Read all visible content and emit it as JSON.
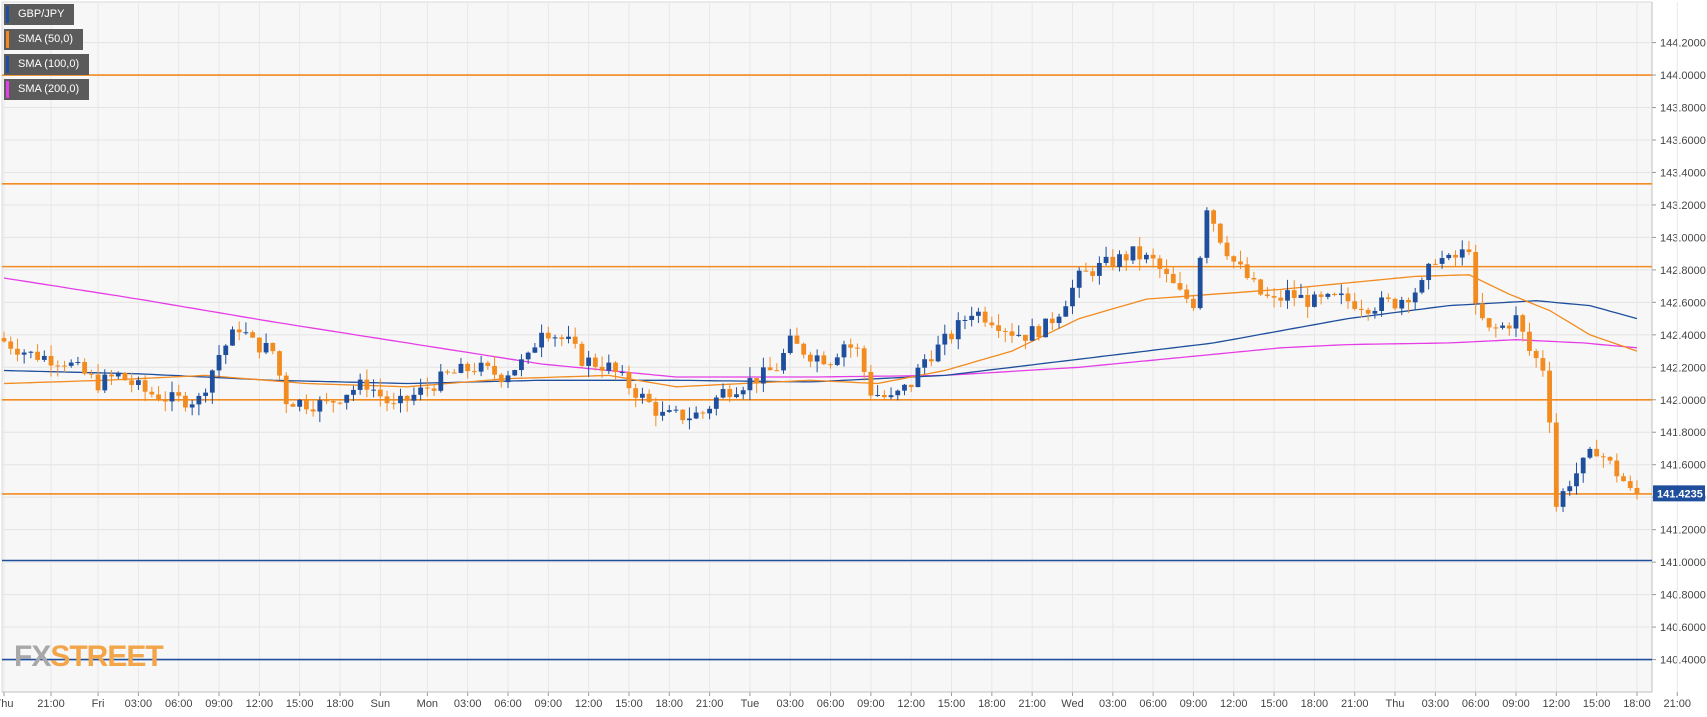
{
  "chart_data": {
    "type": "candlestick",
    "symbol": "GBP/JPY",
    "title": "",
    "xlabel": "",
    "ylabel": "",
    "ylim": [
      140.2,
      144.45
    ],
    "y_ticks": [
      "144.2000",
      "144.0000",
      "143.8000",
      "143.6000",
      "143.4000",
      "143.2000",
      "143.0000",
      "142.8000",
      "142.6000",
      "142.4000",
      "142.2000",
      "142.0000",
      "141.8000",
      "141.6000",
      "141.4000",
      "141.2000",
      "141.0000",
      "140.8000",
      "140.6000",
      "140.4000"
    ],
    "x_ticks": [
      "Thu",
      "21:00",
      "Fri",
      "03:00",
      "06:00",
      "09:00",
      "12:00",
      "15:00",
      "18:00",
      "Sun",
      "Mon",
      "03:00",
      "06:00",
      "09:00",
      "12:00",
      "15:00",
      "18:00",
      "21:00",
      "Tue",
      "03:00",
      "06:00",
      "09:00",
      "12:00",
      "15:00",
      "18:00",
      "21:00",
      "Wed",
      "03:00",
      "06:00",
      "09:00",
      "12:00",
      "15:00",
      "18:00",
      "21:00",
      "Thu",
      "03:00",
      "06:00",
      "09:00",
      "12:00",
      "15:00",
      "18:00",
      "21:00"
    ],
    "x_tick_slots": [
      0,
      7,
      14,
      20,
      26,
      32,
      38,
      44,
      50,
      56,
      63,
      69,
      75,
      81,
      87,
      93,
      99,
      105,
      111,
      117,
      123,
      129,
      135,
      141,
      147,
      153,
      159,
      165,
      171,
      177,
      183,
      189,
      195,
      201,
      207,
      213,
      219,
      225,
      231,
      237,
      243,
      249
    ],
    "legend_position": "top-left",
    "grid": true,
    "legend": [
      {
        "name": "GBP/JPY",
        "color": "#1f4f9c"
      },
      {
        "name": "SMA (50,0)",
        "color": "#f28b20"
      },
      {
        "name": "SMA (100,0)",
        "color": "#1f4f9c"
      },
      {
        "name": "SMA (200,0)",
        "color": "#e63ee6"
      }
    ],
    "horizontal_levels": [
      {
        "value": 144.0,
        "color": "#f28b20"
      },
      {
        "value": 143.33,
        "color": "#f28b20"
      },
      {
        "value": 142.82,
        "color": "#f28b20"
      },
      {
        "value": 142.0,
        "color": "#f28b20"
      },
      {
        "value": 141.42,
        "color": "#f28b20"
      },
      {
        "value": 141.01,
        "color": "#1f4f9c"
      },
      {
        "value": 140.4,
        "color": "#1f4f9c"
      }
    ],
    "current_price": {
      "value": 141.4235,
      "label": "141.4235",
      "color": "#1f4f9c"
    },
    "anchors": [
      [
        0,
        142.38
      ],
      [
        5,
        142.28
      ],
      [
        10,
        142.24
      ],
      [
        15,
        142.1
      ],
      [
        18,
        142.15
      ],
      [
        22,
        142.05
      ],
      [
        26,
        142.0
      ],
      [
        30,
        142.0
      ],
      [
        33,
        142.28
      ],
      [
        36,
        142.45
      ],
      [
        38,
        142.35
      ],
      [
        41,
        142.3
      ],
      [
        43,
        142.0
      ],
      [
        46,
        141.98
      ],
      [
        49,
        141.97
      ],
      [
        52,
        142.05
      ],
      [
        55,
        142.1
      ],
      [
        59,
        141.95
      ],
      [
        63,
        142.05
      ],
      [
        67,
        142.15
      ],
      [
        71,
        142.2
      ],
      [
        75,
        142.15
      ],
      [
        79,
        142.25
      ],
      [
        81,
        142.45
      ],
      [
        85,
        142.35
      ],
      [
        87,
        142.25
      ],
      [
        91,
        142.2
      ],
      [
        95,
        142.05
      ],
      [
        99,
        141.9
      ],
      [
        103,
        141.9
      ],
      [
        105,
        141.92
      ],
      [
        108,
        142.05
      ],
      [
        111,
        142.1
      ],
      [
        114,
        142.15
      ],
      [
        116,
        142.2
      ],
      [
        118,
        142.35
      ],
      [
        121,
        142.28
      ],
      [
        124,
        142.25
      ],
      [
        126,
        142.35
      ],
      [
        128,
        142.3
      ],
      [
        130,
        142.05
      ],
      [
        133,
        142.0
      ],
      [
        136,
        142.1
      ],
      [
        138,
        142.25
      ],
      [
        140,
        142.32
      ],
      [
        142,
        142.4
      ],
      [
        145,
        142.55
      ],
      [
        148,
        142.5
      ],
      [
        151,
        142.42
      ],
      [
        153,
        142.4
      ],
      [
        156,
        142.45
      ],
      [
        158,
        142.55
      ],
      [
        161,
        142.75
      ],
      [
        163,
        142.8
      ],
      [
        166,
        142.85
      ],
      [
        169,
        142.9
      ],
      [
        172,
        142.85
      ],
      [
        174,
        142.75
      ],
      [
        176,
        142.65
      ],
      [
        178,
        142.6
      ],
      [
        180,
        143.2
      ],
      [
        182,
        143.0
      ],
      [
        184,
        142.85
      ],
      [
        186,
        142.75
      ],
      [
        188,
        142.65
      ],
      [
        190,
        142.6
      ],
      [
        192,
        142.65
      ],
      [
        196,
        142.6
      ],
      [
        200,
        142.62
      ],
      [
        204,
        142.58
      ],
      [
        208,
        142.6
      ],
      [
        212,
        142.7
      ],
      [
        214,
        142.88
      ],
      [
        216,
        142.85
      ],
      [
        218,
        142.9
      ],
      [
        219,
        142.95
      ],
      [
        220,
        142.55
      ],
      [
        222,
        142.42
      ],
      [
        224,
        142.45
      ],
      [
        226,
        142.5
      ],
      [
        228,
        142.3
      ],
      [
        229,
        142.25
      ],
      [
        230,
        142.2
      ],
      [
        231,
        141.9
      ],
      [
        232,
        141.35
      ],
      [
        234,
        141.5
      ],
      [
        236,
        141.6
      ],
      [
        238,
        141.7
      ],
      [
        240,
        141.6
      ],
      [
        242,
        141.5
      ],
      [
        243,
        141.43
      ]
    ],
    "sma50_anchors": [
      [
        0,
        142.1
      ],
      [
        15,
        142.12
      ],
      [
        30,
        142.15
      ],
      [
        45,
        142.1
      ],
      [
        60,
        142.08
      ],
      [
        75,
        142.13
      ],
      [
        90,
        142.15
      ],
      [
        100,
        142.08
      ],
      [
        110,
        142.1
      ],
      [
        120,
        142.12
      ],
      [
        130,
        142.1
      ],
      [
        140,
        142.18
      ],
      [
        150,
        142.3
      ],
      [
        160,
        142.5
      ],
      [
        170,
        142.62
      ],
      [
        180,
        142.65
      ],
      [
        190,
        142.68
      ],
      [
        200,
        142.72
      ],
      [
        210,
        142.76
      ],
      [
        218,
        142.77
      ],
      [
        224,
        142.65
      ],
      [
        230,
        142.55
      ],
      [
        236,
        142.4
      ],
      [
        243,
        142.3
      ]
    ],
    "sma100_anchors": [
      [
        0,
        142.18
      ],
      [
        20,
        142.16
      ],
      [
        40,
        142.12
      ],
      [
        60,
        142.1
      ],
      [
        80,
        142.12
      ],
      [
        100,
        142.12
      ],
      [
        120,
        142.11
      ],
      [
        140,
        142.15
      ],
      [
        160,
        142.25
      ],
      [
        180,
        142.35
      ],
      [
        200,
        142.5
      ],
      [
        215,
        142.58
      ],
      [
        228,
        142.61
      ],
      [
        236,
        142.58
      ],
      [
        243,
        142.5
      ]
    ],
    "sma200_anchors": [
      [
        0,
        142.75
      ],
      [
        20,
        142.62
      ],
      [
        40,
        142.48
      ],
      [
        60,
        142.35
      ],
      [
        80,
        142.22
      ],
      [
        100,
        142.14
      ],
      [
        120,
        142.14
      ],
      [
        140,
        142.15
      ],
      [
        160,
        142.2
      ],
      [
        180,
        142.28
      ],
      [
        190,
        142.32
      ],
      [
        200,
        142.34
      ],
      [
        215,
        142.35
      ],
      [
        225,
        142.37
      ],
      [
        235,
        142.35
      ],
      [
        243,
        142.32
      ]
    ],
    "n_candles": 244
  },
  "price_label": "141.4235",
  "brand": {
    "fx": "FX",
    "street": "STREET"
  }
}
